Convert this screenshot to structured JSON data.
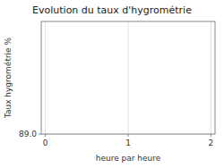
{
  "chart_data": {
    "type": "line",
    "title": "Evolution du taux d'hygrométrie",
    "xlabel": "heure par heure",
    "ylabel": "Taux hygrométrie %",
    "xlim": [
      -0.05,
      2.05
    ],
    "ylim": [
      89.0,
      91.0
    ],
    "xticks": [
      0,
      1,
      2
    ],
    "yticks": [
      {
        "value": 89.0,
        "label": "89.0"
      }
    ],
    "grid": true
  }
}
